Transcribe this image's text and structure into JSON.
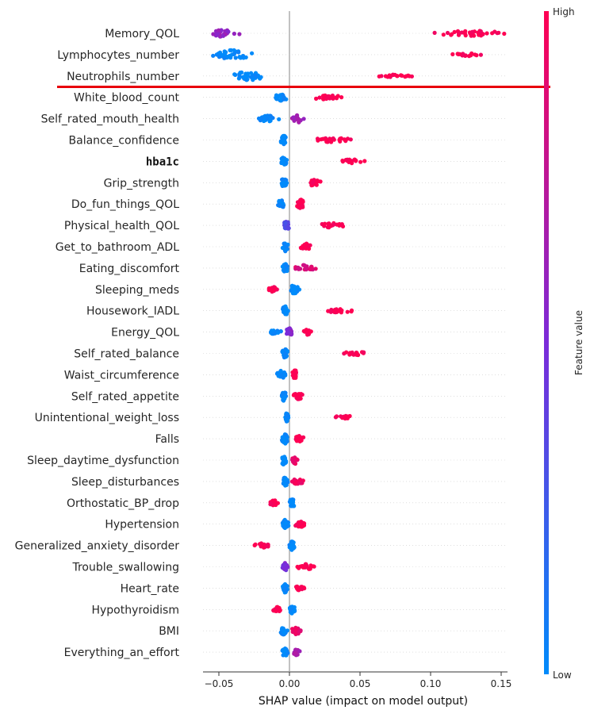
{
  "chart_data": {
    "type": "scatter",
    "subtype": "shap-beeswarm",
    "xlabel": "SHAP value (impact on model output)",
    "xlim": [
      -0.062,
      0.162
    ],
    "xticks": [
      -0.05,
      0.0,
      0.05,
      0.1,
      0.15
    ],
    "xtick_labels": [
      "−0.05",
      "0.00",
      "0.05",
      "0.10",
      "0.15"
    ],
    "colorbar": {
      "label": "Feature value",
      "high": "High",
      "low": "Low",
      "low_color": "#008bfb",
      "high_color": "#ff0052"
    },
    "annotation_color": "#e8000b",
    "features": [
      {
        "name": "Memory_QOL",
        "mono": false,
        "clusters": [
          {
            "c": -0.046,
            "s": 0.009,
            "v": 0.6,
            "w": 5
          },
          {
            "c": 0.13,
            "s": 0.025,
            "v": 1.0,
            "w": 3.5
          }
        ]
      },
      {
        "name": "Lymphocytes_number",
        "mono": false,
        "clusters": [
          {
            "c": -0.04,
            "s": 0.012,
            "v": 0.0,
            "w": 7
          },
          {
            "c": 0.127,
            "s": 0.012,
            "v": 1.0,
            "w": 2
          }
        ]
      },
      {
        "name": "Neutrophils_number",
        "mono": false,
        "clusters": [
          {
            "c": -0.029,
            "s": 0.011,
            "v": 0.0,
            "w": 6
          },
          {
            "c": 0.076,
            "s": 0.011,
            "v": 1.0,
            "w": 2
          }
        ]
      },
      {
        "name": "White_blood_count",
        "mono": false,
        "clusters": [
          {
            "c": -0.006,
            "s": 0.004,
            "v": 0.0,
            "w": 5
          },
          {
            "c": 0.028,
            "s": 0.011,
            "v": 1.0,
            "w": 3
          }
        ]
      },
      {
        "name": "Self_rated_mouth_health",
        "mono": false,
        "clusters": [
          {
            "c": -0.015,
            "s": 0.007,
            "v": 0.0,
            "w": 4
          },
          {
            "c": 0.006,
            "s": 0.004,
            "v": 0.65,
            "w": 5
          }
        ]
      },
      {
        "name": "Balance_confidence",
        "mono": false,
        "clusters": [
          {
            "c": -0.004,
            "s": 0.002,
            "v": 0.0,
            "w": 6
          },
          {
            "c": 0.03,
            "s": 0.014,
            "v": 1.0,
            "w": 3
          }
        ]
      },
      {
        "name": "hba1c",
        "mono": true,
        "clusters": [
          {
            "c": -0.004,
            "s": 0.002,
            "v": 0.0,
            "w": 6
          },
          {
            "c": 0.045,
            "s": 0.01,
            "v": 1.0,
            "w": 2.5
          }
        ]
      },
      {
        "name": "Grip_strength",
        "mono": false,
        "clusters": [
          {
            "c": -0.004,
            "s": 0.002,
            "v": 0.0,
            "w": 6
          },
          {
            "c": 0.017,
            "s": 0.005,
            "v": 1.0,
            "w": 4
          }
        ]
      },
      {
        "name": "Do_fun_things_QOL",
        "mono": false,
        "clusters": [
          {
            "c": -0.006,
            "s": 0.003,
            "v": 0.0,
            "w": 5
          },
          {
            "c": 0.008,
            "s": 0.003,
            "v": 1.0,
            "w": 6
          }
        ]
      },
      {
        "name": "Physical_health_QOL",
        "mono": false,
        "clusters": [
          {
            "c": -0.002,
            "s": 0.002,
            "v": 0.35,
            "w": 6
          },
          {
            "c": 0.03,
            "s": 0.009,
            "v": 1.0,
            "w": 3
          }
        ]
      },
      {
        "name": "Get_to_bathroom_ADL",
        "mono": false,
        "clusters": [
          {
            "c": -0.003,
            "s": 0.002,
            "v": 0.0,
            "w": 6
          },
          {
            "c": 0.012,
            "s": 0.004,
            "v": 1.0,
            "w": 4
          }
        ]
      },
      {
        "name": "Eating_discomfort",
        "mono": false,
        "clusters": [
          {
            "c": -0.003,
            "s": 0.002,
            "v": 0.0,
            "w": 6
          },
          {
            "c": 0.01,
            "s": 0.008,
            "v": 0.85,
            "w": 4
          }
        ]
      },
      {
        "name": "Sleeping_meds",
        "mono": false,
        "clusters": [
          {
            "c": -0.011,
            "s": 0.004,
            "v": 1.0,
            "w": 3.5
          },
          {
            "c": 0.003,
            "s": 0.003,
            "v": 0.0,
            "w": 6
          }
        ]
      },
      {
        "name": "Housework_IADL",
        "mono": false,
        "clusters": [
          {
            "c": -0.003,
            "s": 0.002,
            "v": 0.0,
            "w": 6
          },
          {
            "c": 0.035,
            "s": 0.009,
            "v": 1.0,
            "w": 2.5
          }
        ]
      },
      {
        "name": "Energy_QOL",
        "mono": false,
        "clusters": [
          {
            "c": -0.011,
            "s": 0.005,
            "v": 0.0,
            "w": 3
          },
          {
            "c": 0.0,
            "s": 0.002,
            "v": 0.55,
            "w": 6
          },
          {
            "c": 0.013,
            "s": 0.003,
            "v": 1.0,
            "w": 3.5
          }
        ]
      },
      {
        "name": "Self_rated_balance",
        "mono": false,
        "clusters": [
          {
            "c": -0.003,
            "s": 0.002,
            "v": 0.0,
            "w": 6
          },
          {
            "c": 0.047,
            "s": 0.008,
            "v": 1.0,
            "w": 2.5
          }
        ]
      },
      {
        "name": "Waist_circumference",
        "mono": false,
        "clusters": [
          {
            "c": -0.006,
            "s": 0.003,
            "v": 0.0,
            "w": 5
          },
          {
            "c": 0.004,
            "s": 0.002,
            "v": 1.0,
            "w": 6
          }
        ]
      },
      {
        "name": "Self_rated_appetite",
        "mono": false,
        "clusters": [
          {
            "c": -0.004,
            "s": 0.002,
            "v": 0.0,
            "w": 6
          },
          {
            "c": 0.006,
            "s": 0.003,
            "v": 1.0,
            "w": 5
          }
        ]
      },
      {
        "name": "Unintentional_weight_loss",
        "mono": false,
        "clusters": [
          {
            "c": -0.002,
            "s": 0.001,
            "v": 0.0,
            "w": 6
          },
          {
            "c": 0.04,
            "s": 0.01,
            "v": 1.0,
            "w": 2
          }
        ]
      },
      {
        "name": "Falls",
        "mono": false,
        "clusters": [
          {
            "c": -0.003,
            "s": 0.002,
            "v": 0.0,
            "w": 6
          },
          {
            "c": 0.007,
            "s": 0.003,
            "v": 1.0,
            "w": 4
          }
        ]
      },
      {
        "name": "Sleep_daytime_dysfunction",
        "mono": false,
        "clusters": [
          {
            "c": -0.004,
            "s": 0.002,
            "v": 0.0,
            "w": 6
          },
          {
            "c": 0.004,
            "s": 0.002,
            "v": 0.9,
            "w": 5
          }
        ]
      },
      {
        "name": "Sleep_disturbances",
        "mono": false,
        "clusters": [
          {
            "c": -0.003,
            "s": 0.002,
            "v": 0.0,
            "w": 6
          },
          {
            "c": 0.006,
            "s": 0.004,
            "v": 0.95,
            "w": 4
          }
        ]
      },
      {
        "name": "Orthostatic_BP_drop",
        "mono": false,
        "clusters": [
          {
            "c": -0.011,
            "s": 0.003,
            "v": 1.0,
            "w": 3.5
          },
          {
            "c": 0.002,
            "s": 0.002,
            "v": 0.0,
            "w": 6
          }
        ]
      },
      {
        "name": "Hypertension",
        "mono": false,
        "clusters": [
          {
            "c": -0.003,
            "s": 0.002,
            "v": 0.0,
            "w": 6
          },
          {
            "c": 0.008,
            "s": 0.004,
            "v": 1.0,
            "w": 4
          }
        ]
      },
      {
        "name": "Generalized_anxiety_disorder",
        "mono": false,
        "clusters": [
          {
            "c": -0.019,
            "s": 0.005,
            "v": 1.0,
            "w": 3
          },
          {
            "c": 0.002,
            "s": 0.002,
            "v": 0.0,
            "w": 6
          }
        ]
      },
      {
        "name": "Trouble_swallowing",
        "mono": false,
        "clusters": [
          {
            "c": -0.003,
            "s": 0.002,
            "v": 0.5,
            "w": 5
          },
          {
            "c": 0.012,
            "s": 0.006,
            "v": 1.0,
            "w": 3.5
          }
        ]
      },
      {
        "name": "Heart_rate",
        "mono": false,
        "clusters": [
          {
            "c": -0.003,
            "s": 0.002,
            "v": 0.0,
            "w": 6
          },
          {
            "c": 0.007,
            "s": 0.003,
            "v": 1.0,
            "w": 4
          }
        ]
      },
      {
        "name": "Hypothyroidism",
        "mono": false,
        "clusters": [
          {
            "c": -0.009,
            "s": 0.003,
            "v": 1.0,
            "w": 3.5
          },
          {
            "c": 0.002,
            "s": 0.002,
            "v": 0.0,
            "w": 6
          }
        ]
      },
      {
        "name": "BMI",
        "mono": false,
        "clusters": [
          {
            "c": -0.004,
            "s": 0.002,
            "v": 0.0,
            "w": 6
          },
          {
            "c": 0.005,
            "s": 0.003,
            "v": 0.9,
            "w": 5
          }
        ]
      },
      {
        "name": "Everything_an_effort",
        "mono": false,
        "clusters": [
          {
            "c": -0.003,
            "s": 0.002,
            "v": 0.0,
            "w": 6
          },
          {
            "c": 0.005,
            "s": 0.002,
            "v": 0.65,
            "w": 4
          }
        ]
      }
    ]
  }
}
